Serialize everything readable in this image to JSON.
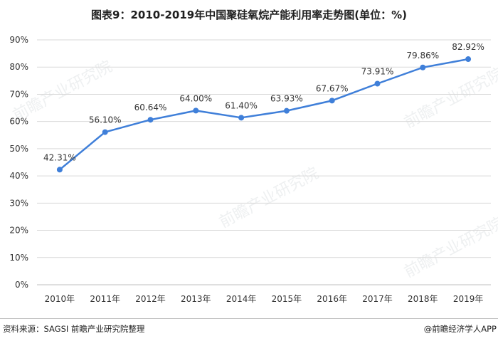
{
  "title": "图表9：2010-2019年中国聚硅氧烷产能利用率走势图(单位：%)",
  "source": "资料来源：SAGSI 前瞻产业研究院整理",
  "brand": "@前瞻经济学人APP",
  "watermark": "前瞻产业研究院",
  "colors": {
    "line": "#3f7fd9",
    "grid": "#d9d9d9",
    "text": "#333333"
  },
  "chart_data": {
    "type": "line",
    "categories": [
      "2010年",
      "2011年",
      "2012年",
      "2013年",
      "2014年",
      "2015年",
      "2016年",
      "2017年",
      "2018年",
      "2019年"
    ],
    "series": [
      {
        "values": [
          42.31,
          56.1,
          60.64,
          64.0,
          61.4,
          63.93,
          67.67,
          73.91,
          79.86,
          82.92
        ]
      }
    ],
    "data_labels": [
      "42.31%",
      "56.10%",
      "60.64%",
      "64.00%",
      "61.40%",
      "63.93%",
      "67.67%",
      "73.91%",
      "79.86%",
      "82.92%"
    ],
    "y_ticks": [
      "0%",
      "10%",
      "20%",
      "30%",
      "40%",
      "50%",
      "60%",
      "70%",
      "80%",
      "90%"
    ],
    "ylim": [
      0,
      90
    ],
    "grid": true,
    "legend": "none"
  }
}
